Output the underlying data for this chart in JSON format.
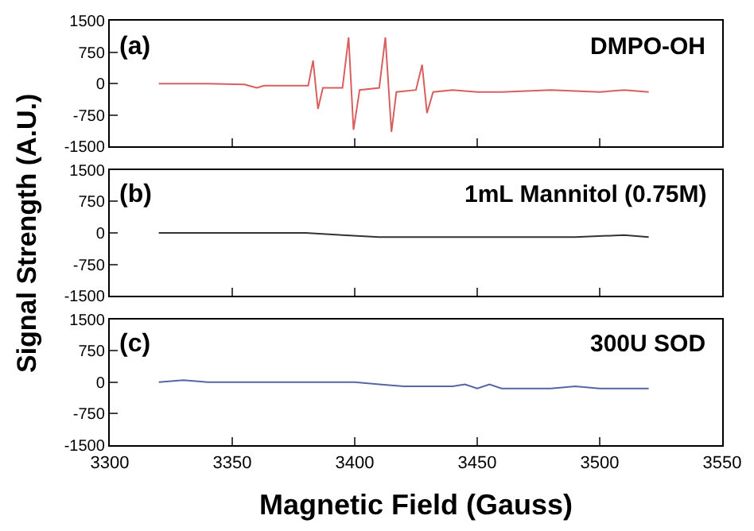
{
  "chart_data": [
    {
      "type": "line",
      "ylabel": "Signal Strength (A.U.)",
      "annotations": [
        "(a)",
        "DMPO-OH"
      ],
      "xlim": [
        3300,
        3550
      ],
      "xticks": [
        3300,
        3350,
        3400,
        3450,
        3500,
        3550
      ],
      "ylim": [
        -1500,
        1500
      ],
      "yticks": [
        -1500,
        -750,
        0,
        750,
        1500
      ],
      "tick_labels": "y",
      "series": [
        {
          "color": "#d95f5f",
          "x": [
            3320,
            3340,
            3355,
            3360,
            3363,
            3375,
            3381,
            3383,
            3385,
            3387,
            3395,
            3397.5,
            3399.5,
            3402,
            3410,
            3412.5,
            3415,
            3417,
            3425,
            3427.5,
            3429.5,
            3432,
            3440,
            3450,
            3460,
            3480,
            3500,
            3510,
            3520
          ],
          "values": [
            0,
            0,
            -20,
            -100,
            -50,
            -50,
            -50,
            550,
            -600,
            -100,
            -100,
            1100,
            -1100,
            -150,
            -100,
            1100,
            -1150,
            -200,
            -150,
            450,
            -700,
            -200,
            -150,
            -200,
            -200,
            -150,
            -200,
            -150,
            -200
          ]
        }
      ]
    },
    {
      "type": "line",
      "annotations": [
        "(b)",
        "1mL Mannitol (0.75M)"
      ],
      "xlim": [
        3300,
        3550
      ],
      "xticks": [
        3300,
        3350,
        3400,
        3450,
        3500,
        3550
      ],
      "ylim": [
        -1500,
        1500
      ],
      "yticks": [
        -1500,
        -750,
        0,
        750,
        1500
      ],
      "tick_labels": "y",
      "series": [
        {
          "color": "#333333",
          "x": [
            3320,
            3340,
            3360,
            3380,
            3395,
            3410,
            3430,
            3450,
            3470,
            3490,
            3510,
            3520
          ],
          "values": [
            0,
            0,
            0,
            0,
            -50,
            -100,
            -100,
            -100,
            -100,
            -100,
            -50,
            -100
          ]
        }
      ]
    },
    {
      "type": "line",
      "xlabel": "Magnetic Field (Gauss)",
      "annotations": [
        "(c)",
        "300U SOD"
      ],
      "xlim": [
        3300,
        3550
      ],
      "xticks": [
        3300,
        3350,
        3400,
        3450,
        3500,
        3550
      ],
      "ylim": [
        -1500,
        1500
      ],
      "yticks": [
        -1500,
        -750,
        0,
        750,
        1500
      ],
      "series": [
        {
          "color": "#5565a5",
          "x": [
            3320,
            3330,
            3340,
            3360,
            3380,
            3400,
            3410,
            3420,
            3440,
            3445,
            3450,
            3455,
            3460,
            3480,
            3490,
            3500,
            3520
          ],
          "values": [
            0,
            50,
            0,
            0,
            0,
            0,
            -50,
            -100,
            -100,
            -50,
            -150,
            -50,
            -150,
            -150,
            -100,
            -150,
            -150
          ]
        }
      ]
    }
  ]
}
